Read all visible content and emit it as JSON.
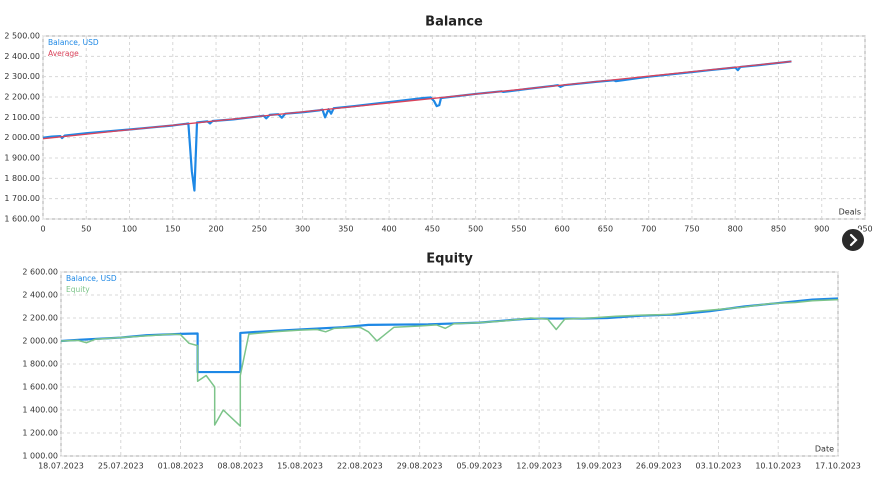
{
  "chart_data": [
    {
      "type": "line",
      "title": "Balance",
      "xlabel": "Deals",
      "xlim": [
        0,
        950
      ],
      "xticks": [
        0,
        50,
        100,
        150,
        200,
        250,
        300,
        350,
        400,
        450,
        500,
        550,
        600,
        650,
        700,
        750,
        800,
        850,
        900,
        950
      ],
      "ylim": [
        1600,
        2500
      ],
      "yticks": [
        {
          "value": 1600,
          "label": "1 600.00"
        },
        {
          "value": 1700,
          "label": "1 700.00"
        },
        {
          "value": 1800,
          "label": "1 800.00"
        },
        {
          "value": 1900,
          "label": "1 900.00"
        },
        {
          "value": 2000,
          "label": "2 000.00"
        },
        {
          "value": 2100,
          "label": "2 100.00"
        },
        {
          "value": 2200,
          "label": "2 200.00"
        },
        {
          "value": 2300,
          "label": "2 300.00"
        },
        {
          "value": 2400,
          "label": "2 400.00"
        },
        {
          "value": 2500,
          "label": "2 500.00"
        }
      ],
      "grid": true,
      "legend": "upper left",
      "series": [
        {
          "name": "Balance, USD",
          "color": "#1e88e5",
          "width": 2.2,
          "x": [
            0,
            10,
            20,
            22,
            25,
            50,
            100,
            130,
            150,
            165,
            168,
            172,
            175,
            178,
            190,
            193,
            196,
            220,
            250,
            255,
            258,
            262,
            272,
            276,
            280,
            300,
            320,
            323,
            326,
            330,
            333,
            336,
            360,
            400,
            440,
            448,
            452,
            455,
            458,
            460,
            500,
            530,
            532,
            560,
            590,
            595,
            598,
            602,
            640,
            660,
            662,
            700,
            740,
            770,
            800,
            803,
            806,
            830,
            865
          ],
          "values": [
            2000,
            2005,
            2008,
            1998,
            2010,
            2022,
            2040,
            2052,
            2060,
            2068,
            2070,
            1835,
            1740,
            2075,
            2080,
            2070,
            2082,
            2090,
            2105,
            2108,
            2095,
            2112,
            2115,
            2098,
            2118,
            2125,
            2135,
            2138,
            2100,
            2140,
            2118,
            2145,
            2155,
            2175,
            2195,
            2198,
            2180,
            2155,
            2160,
            2195,
            2215,
            2228,
            2225,
            2240,
            2255,
            2258,
            2250,
            2258,
            2275,
            2282,
            2278,
            2300,
            2318,
            2332,
            2345,
            2332,
            2348,
            2358,
            2375
          ]
        },
        {
          "name": "Average",
          "color": "#d9435b",
          "width": 1.3,
          "x": [
            0,
            865
          ],
          "values": [
            1995,
            2375
          ]
        }
      ]
    },
    {
      "type": "line",
      "title": "Equity",
      "xlabel": "Date",
      "xlim": [
        "2023-07-18",
        "2023-10-17"
      ],
      "xticks": [
        {
          "value": "2023-07-18",
          "label": "18.07.2023"
        },
        {
          "value": "2023-07-25",
          "label": "25.07.2023"
        },
        {
          "value": "2023-08-01",
          "label": "01.08.2023"
        },
        {
          "value": "2023-08-08",
          "label": "08.08.2023"
        },
        {
          "value": "2023-08-15",
          "label": "15.08.2023"
        },
        {
          "value": "2023-08-22",
          "label": "22.08.2023"
        },
        {
          "value": "2023-08-29",
          "label": "29.08.2023"
        },
        {
          "value": "2023-09-05",
          "label": "05.09.2023"
        },
        {
          "value": "2023-09-12",
          "label": "12.09.2023"
        },
        {
          "value": "2023-09-19",
          "label": "19.09.2023"
        },
        {
          "value": "2023-09-26",
          "label": "26.09.2023"
        },
        {
          "value": "2023-10-03",
          "label": "03.10.2023"
        },
        {
          "value": "2023-10-10",
          "label": "10.10.2023"
        },
        {
          "value": "2023-10-17",
          "label": "17.10.2023"
        }
      ],
      "ylim": [
        1000,
        2600
      ],
      "yticks": [
        {
          "value": 1000,
          "label": "1 000.00"
        },
        {
          "value": 1200,
          "label": "1 200.00"
        },
        {
          "value": 1400,
          "label": "1 400.00"
        },
        {
          "value": 1600,
          "label": "1 600.00"
        },
        {
          "value": 1800,
          "label": "1 800.00"
        },
        {
          "value": 2000,
          "label": "2 000.00"
        },
        {
          "value": 2200,
          "label": "2 200.00"
        },
        {
          "value": 2400,
          "label": "2 400.00"
        },
        {
          "value": 2600,
          "label": "2 600.00"
        }
      ],
      "grid": true,
      "legend": "upper left",
      "series": [
        {
          "name": "Balance, USD",
          "color": "#1e88e5",
          "width": 2.2,
          "x": [
            "2023-07-18",
            "2023-07-20",
            "2023-07-25",
            "2023-07-28",
            "2023-08-01",
            "2023-08-03",
            "2023-08-03",
            "2023-08-08",
            "2023-08-08",
            "2023-08-10",
            "2023-08-15",
            "2023-08-20",
            "2023-08-23",
            "2023-08-30",
            "2023-09-05",
            "2023-09-10",
            "2023-09-12",
            "2023-09-17",
            "2023-09-20",
            "2023-09-24",
            "2023-09-28",
            "2023-10-02",
            "2023-10-06",
            "2023-10-10",
            "2023-10-14",
            "2023-10-17"
          ],
          "values": [
            2000,
            2010,
            2030,
            2050,
            2062,
            2065,
            1730,
            1730,
            2070,
            2080,
            2100,
            2120,
            2140,
            2145,
            2160,
            2190,
            2195,
            2195,
            2200,
            2220,
            2230,
            2260,
            2300,
            2330,
            2360,
            2370
          ]
        },
        {
          "name": "Equity",
          "color": "#7dc48a",
          "width": 1.5,
          "x": [
            "2023-07-18",
            "2023-07-20",
            "2023-07-21",
            "2023-07-22",
            "2023-07-25",
            "2023-07-28",
            "2023-07-31",
            "2023-08-01",
            "2023-08-02",
            "2023-08-03",
            "2023-08-03",
            "2023-08-04",
            "2023-08-05",
            "2023-08-05",
            "2023-08-06",
            "2023-08-07",
            "2023-08-08",
            "2023-08-08",
            "2023-08-09",
            "2023-08-12",
            "2023-08-15",
            "2023-08-17",
            "2023-08-18",
            "2023-08-19",
            "2023-08-22",
            "2023-08-23",
            "2023-08-24",
            "2023-08-25",
            "2023-08-26",
            "2023-08-29",
            "2023-08-31",
            "2023-09-01",
            "2023-09-02",
            "2023-09-05",
            "2023-09-08",
            "2023-09-11",
            "2023-09-13",
            "2023-09-14",
            "2023-09-15",
            "2023-09-18",
            "2023-09-21",
            "2023-09-24",
            "2023-09-27",
            "2023-09-30",
            "2023-10-03",
            "2023-10-06",
            "2023-10-09",
            "2023-10-12",
            "2023-10-14",
            "2023-10-17"
          ],
          "values": [
            2000,
            2005,
            1985,
            2015,
            2030,
            2045,
            2060,
            2055,
            1980,
            1960,
            1650,
            1700,
            1600,
            1270,
            1400,
            1330,
            1260,
            1700,
            2060,
            2080,
            2095,
            2100,
            2080,
            2110,
            2120,
            2080,
            2000,
            2060,
            2120,
            2130,
            2140,
            2110,
            2150,
            2160,
            2175,
            2200,
            2190,
            2100,
            2190,
            2200,
            2215,
            2225,
            2230,
            2255,
            2275,
            2295,
            2325,
            2335,
            2350,
            2360
          ]
        }
      ]
    }
  ]
}
